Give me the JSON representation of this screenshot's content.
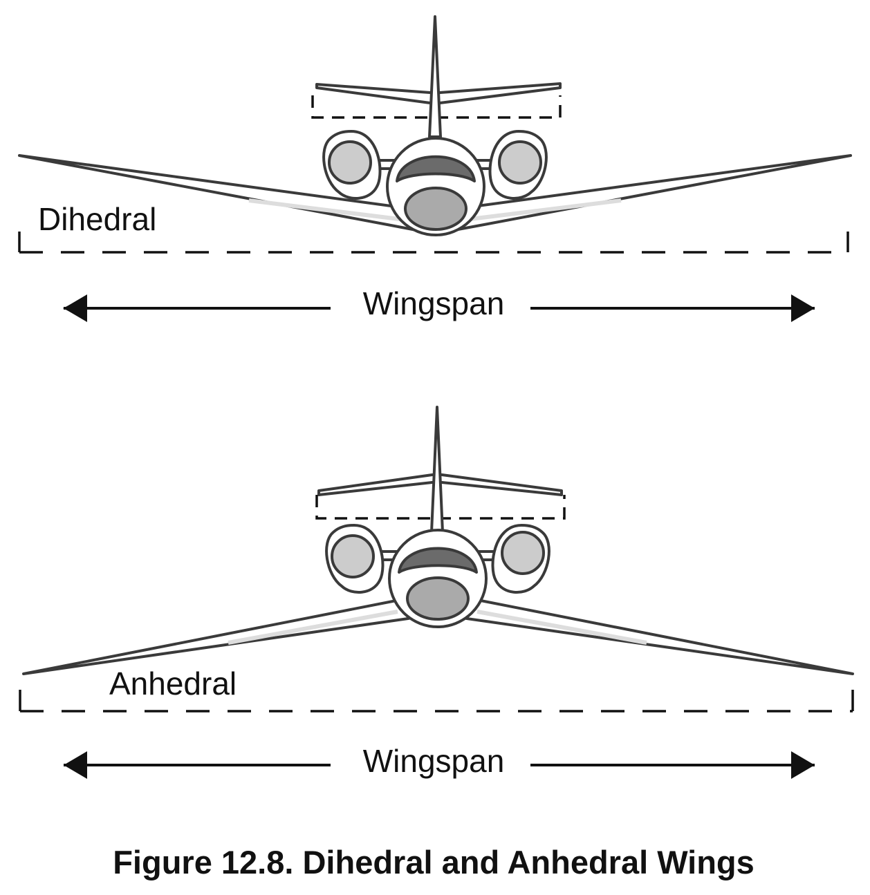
{
  "diagrams": [
    {
      "wing_type_label": "Dihedral",
      "span_label": "Wingspan"
    },
    {
      "wing_type_label": "Anhedral",
      "span_label": "Wingspan"
    }
  ],
  "caption": "Figure 12.8. Dihedral and Anhedral Wings",
  "colors": {
    "outline": "#3a3a3a",
    "aircraft_fill": "#ffffff",
    "engine_fill": "#cccccc",
    "windshield_fill": "#6b6b6b",
    "intake_fill": "#aaaaaa",
    "wing_shade": "#dddddd",
    "text": "#111111"
  }
}
